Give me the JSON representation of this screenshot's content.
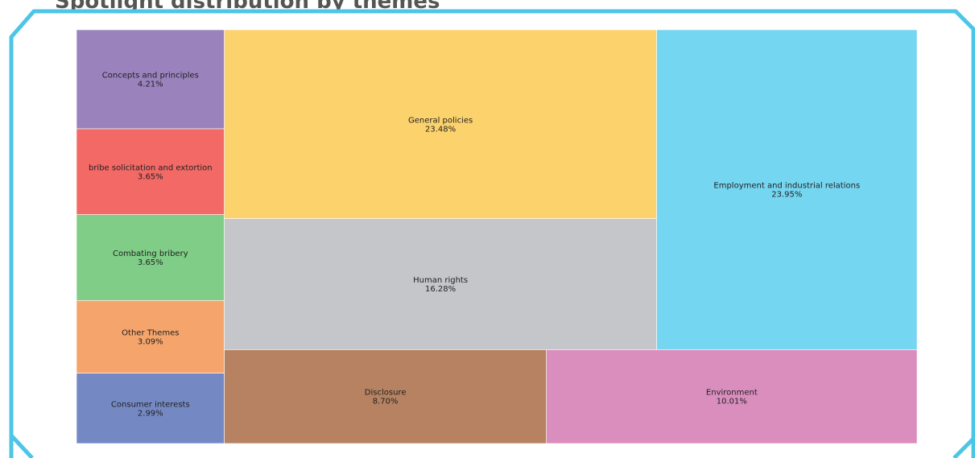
{
  "page": {
    "title": "Spotlight distribution by themes"
  },
  "colors": {
    "frame": "#4cc6e6",
    "tile_border": "#ffffff"
  },
  "chart_data": {
    "type": "treemap",
    "title": "Spotlight distribution by themes",
    "items": [
      {
        "label": "Concepts and principles",
        "value": 4.21,
        "display": "4.21%",
        "color": "#9a82bc"
      },
      {
        "label": "bribe solicitation and extortion",
        "value": 3.65,
        "display": "3.65%",
        "color": "#f26965"
      },
      {
        "label": "Combating bribery",
        "value": 3.65,
        "display": "3.65%",
        "color": "#7fcd86"
      },
      {
        "label": "Other Themes",
        "value": 3.09,
        "display": "3.09%",
        "color": "#f5a46b"
      },
      {
        "label": "Consumer interests",
        "value": 2.99,
        "display": "2.99%",
        "color": "#7489c3"
      },
      {
        "label": "General policies",
        "value": 23.48,
        "display": "23.48%",
        "color": "#fcd26c"
      },
      {
        "label": "Human rights",
        "value": 16.28,
        "display": "16.28%",
        "color": "#c5c6c9"
      },
      {
        "label": "Employment and industrial relations",
        "value": 23.95,
        "display": "23.95%",
        "color": "#75d6f1"
      },
      {
        "label": "Disclosure",
        "value": 8.7,
        "display": "8.70%",
        "color": "#b68262"
      },
      {
        "label": "Environment",
        "value": 10.01,
        "display": "10.01%",
        "color": "#da8ebe"
      }
    ]
  }
}
